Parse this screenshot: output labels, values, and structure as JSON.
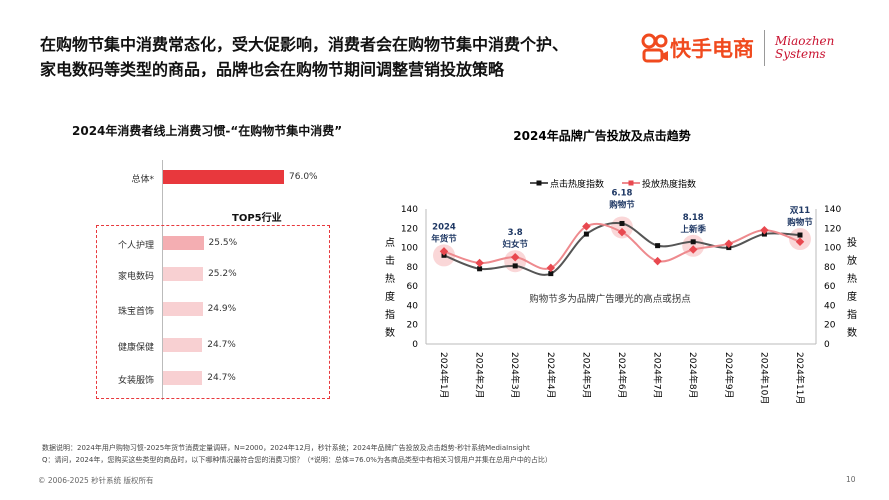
{
  "title_lines": [
    "在购物节集中消费常态化，受大促影响，消费者会在购物节集中消费个护、",
    "家电数码等类型的商品，品牌也会在购物节期间调整营销投放策略"
  ],
  "logo": {
    "kuaishou": "快手电商",
    "miaozhen_line1": "Miaozhen",
    "miaozhen_line2": "Systems"
  },
  "colors": {
    "accent": "#e8383d",
    "bar_light": "#f8d0d2",
    "bar_mid": "#f4aeb2",
    "click_line": "#555555",
    "ad_line": "#e8484f"
  },
  "chart_data": [
    {
      "type": "bar",
      "title": "2024年消费者线上消费习惯-“在购物节集中消费”",
      "orientation": "horizontal",
      "total": {
        "label": "总体*",
        "value": 76.0,
        "value_label": "76.0%"
      },
      "group_title": "TOP5行业",
      "categories": [
        "个人护理",
        "家电数码",
        "珠宝首饰",
        "健康保健",
        "女装服饰"
      ],
      "values": [
        25.5,
        25.2,
        24.9,
        24.7,
        24.7
      ],
      "value_labels": [
        "25.5%",
        "25.2%",
        "24.9%",
        "24.7%",
        "24.7%"
      ]
    },
    {
      "type": "line",
      "title": "2024年品牌广告投放及点击趋势",
      "categories": [
        "2024年1月",
        "2024年2月",
        "2024年3月",
        "2024年4月",
        "2024年5月",
        "2024年6月",
        "2024年7月",
        "2024年8月",
        "2024年9月",
        "2024年10月",
        "2024年11月"
      ],
      "series": [
        {
          "name": "点击热度指数",
          "values": [
            92,
            78,
            81,
            73,
            114,
            125,
            102,
            106,
            100,
            114,
            113
          ]
        },
        {
          "name": "投放热度指数",
          "values": [
            96,
            84,
            90,
            79,
            122,
            116,
            86,
            98,
            104,
            118,
            106
          ]
        }
      ],
      "ylabel": "点击热度指数",
      "y2label": "投放热度指数",
      "ylim": [
        0,
        140
      ],
      "y2lim": [
        0,
        140
      ],
      "yticks": [
        0,
        20,
        40,
        60,
        80,
        100,
        120,
        140
      ],
      "legend": "top",
      "annotations": [
        {
          "month": 0,
          "text": [
            "2024",
            "年货节"
          ]
        },
        {
          "month": 2,
          "text": [
            "3.8",
            "妇女节"
          ]
        },
        {
          "month": 5,
          "text": [
            "6.18",
            "购物节"
          ]
        },
        {
          "month": 7,
          "text": [
            "8.18",
            "上新季"
          ]
        },
        {
          "month": 10,
          "text": [
            "双11",
            "购物节"
          ]
        }
      ],
      "center_note": "购物节多为品牌广告曝光的高点或拐点"
    }
  ],
  "notes": [
    "数据说明：2024年用户购物习惯-2025年货节消费定量调研，N=2000，2024年12月，秒针系统；2024年品牌广告投放及点击趋势-秒针系统MediaInsight",
    "Q：请问，2024年，您购买这些类型的商品时，以下哪种情况最符合您的消费习惯？（*说明：总体=76.0%为各商品类型中有相关习惯用户并集在总用户中的占比）"
  ],
  "footer": {
    "copyright": "© 2006-2025 秒针系统 版权所有",
    "page": "10"
  }
}
